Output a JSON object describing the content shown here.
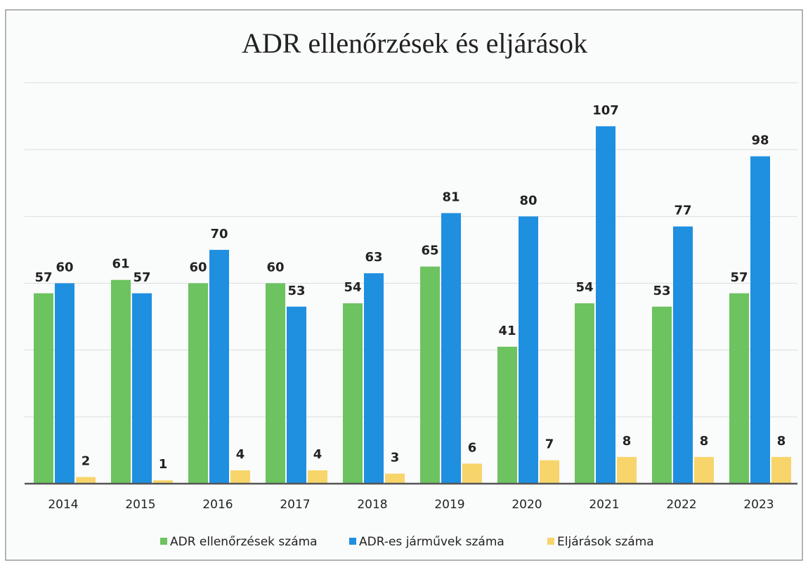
{
  "chart_data": {
    "type": "bar",
    "title": "ADR ellenőrzések és eljárások",
    "categories": [
      "2014",
      "2015",
      "2016",
      "2017",
      "2018",
      "2019",
      "2020",
      "2021",
      "2022",
      "2023"
    ],
    "series": [
      {
        "name": "ADR ellenőrzések száma",
        "color": "#6cc35f",
        "values": [
          57,
          61,
          60,
          60,
          54,
          65,
          41,
          54,
          53,
          57
        ]
      },
      {
        "name": "ADR-es járművek száma",
        "color": "#1f8fe0",
        "values": [
          60,
          57,
          70,
          53,
          63,
          81,
          80,
          107,
          77,
          98
        ]
      },
      {
        "name": "Eljárások száma",
        "color": "#f7d56a",
        "values": [
          2,
          1,
          4,
          4,
          3,
          6,
          7,
          8,
          8,
          8
        ]
      }
    ],
    "ylim": [
      0,
      120
    ],
    "yticks": [
      0,
      20,
      40,
      60,
      80,
      100,
      120
    ],
    "grid": true,
    "legend": "bottom"
  }
}
